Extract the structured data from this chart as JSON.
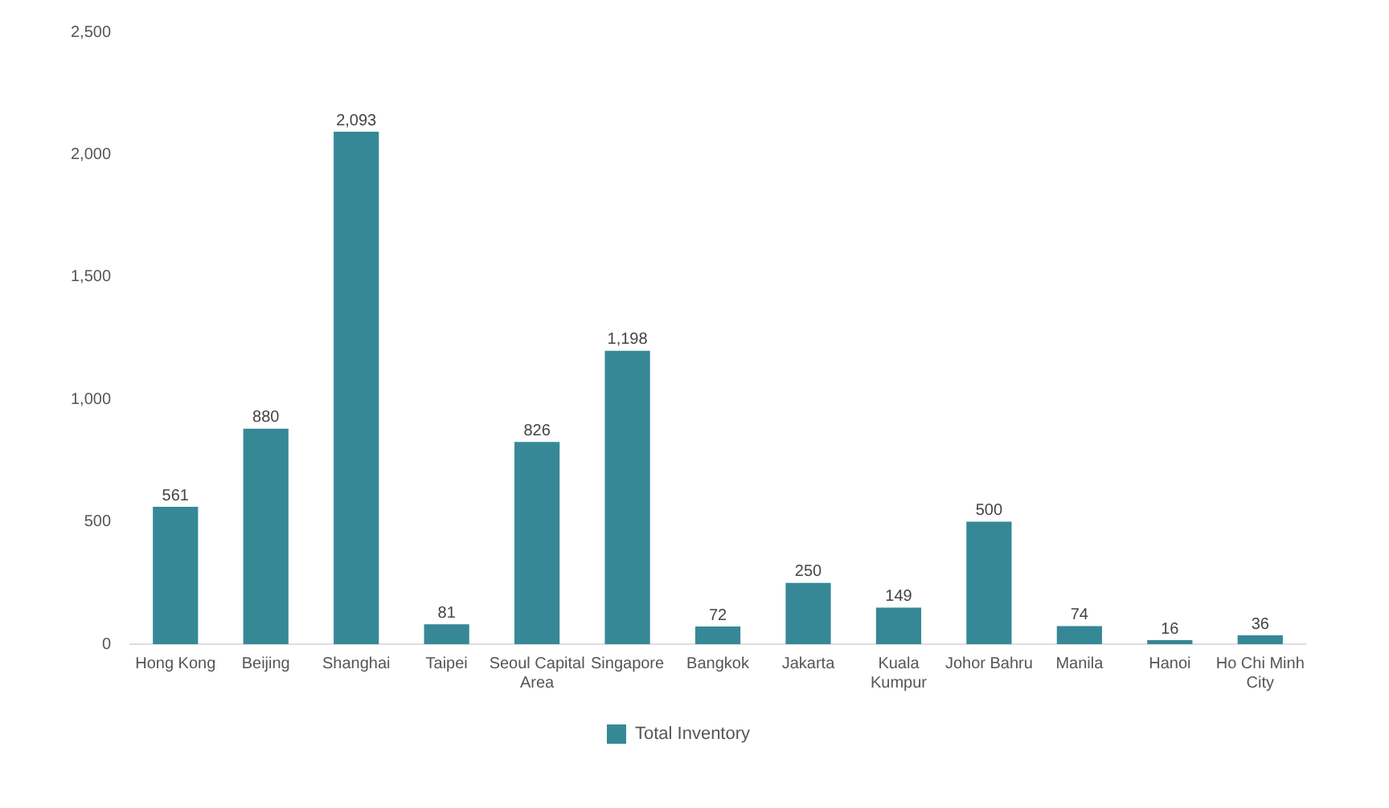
{
  "chart_data": {
    "type": "bar",
    "categories": [
      "Hong Kong",
      "Beijing",
      "Shanghai",
      "Taipei",
      "Seoul Capital Area",
      "Singapore",
      "Bangkok",
      "Jakarta",
      "Kuala Kumpur",
      "Johor Bahru",
      "Manila",
      "Hanoi",
      "Ho Chi Minh City"
    ],
    "series": [
      {
        "name": "Total Inventory",
        "color": "#368896",
        "values": [
          561,
          880,
          2093,
          81,
          826,
          1198,
          72,
          250,
          149,
          500,
          74,
          16,
          36
        ],
        "value_labels": [
          "561",
          "880",
          "2,093",
          "81",
          "826",
          "1,198",
          "72",
          "250",
          "149",
          "500",
          "74",
          "16",
          "36"
        ]
      }
    ],
    "ylim": [
      0,
      2500
    ],
    "yticks": [
      0,
      500,
      {
        "value": 1000,
        "label": "1,000"
      },
      {
        "value": 1500,
        "label": "1,500"
      },
      {
        "value": 2000,
        "label": "2,000"
      },
      {
        "value": 2500,
        "label": "2,500"
      }
    ],
    "legend": "bottom"
  }
}
